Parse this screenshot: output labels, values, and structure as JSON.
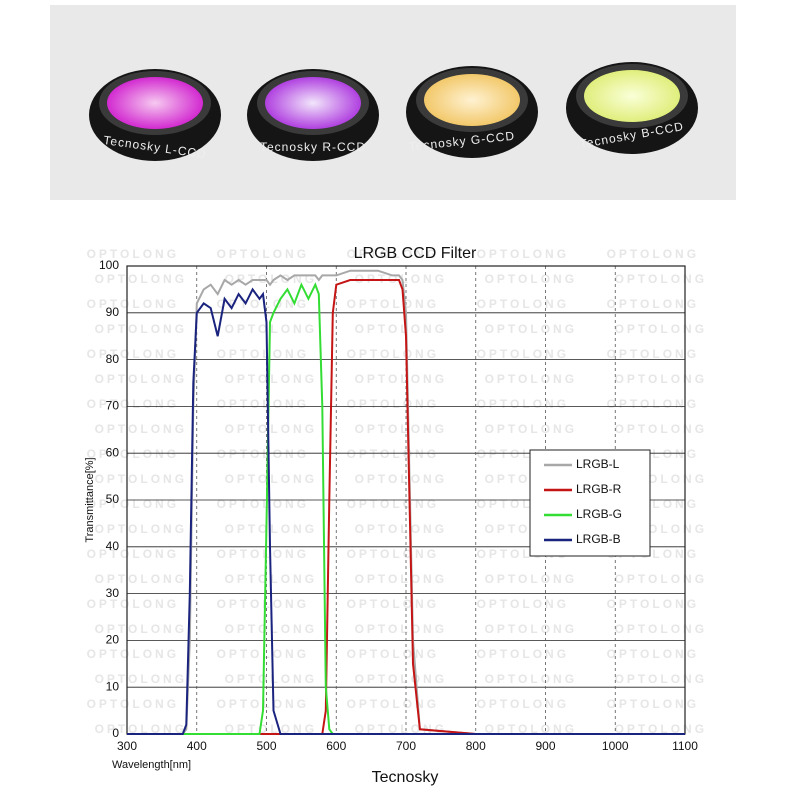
{
  "photo": {
    "filters": [
      {
        "label": "Tecnosky L-CCD"
      },
      {
        "label": "Tecnosky R-CCD"
      },
      {
        "label": "Tecnosky G-CCD"
      },
      {
        "label": "Tecnosky B-CCD"
      }
    ]
  },
  "watermark": "OPTOLONG",
  "caption": "Tecnosky",
  "chart_data": {
    "type": "line",
    "title": "LRGB CCD Filter",
    "x_label": "Wavelength[nm]",
    "y_label": "Transmittance[%]",
    "x": [
      300,
      380,
      385,
      390,
      395,
      400,
      410,
      420,
      430,
      440,
      450,
      460,
      470,
      480,
      490,
      495,
      500,
      505,
      510,
      520,
      530,
      540,
      550,
      560,
      570,
      575,
      580,
      585,
      590,
      595,
      600,
      620,
      640,
      660,
      680,
      690,
      695,
      700,
      705,
      710,
      720,
      800,
      900,
      1000,
      1100
    ],
    "series": [
      {
        "name": "LRGB-L",
        "color": "#a8a8a8",
        "values": [
          0,
          0,
          1,
          20,
          70,
          92,
          95,
          96,
          94,
          97,
          96,
          97,
          96,
          97,
          97,
          97,
          97,
          96,
          97,
          98,
          97,
          98,
          98,
          98,
          98,
          97,
          98,
          98,
          98,
          98,
          98,
          99,
          99,
          99,
          98,
          98,
          97,
          90,
          55,
          20,
          1,
          0,
          0,
          0,
          0
        ]
      },
      {
        "name": "LRGB-R",
        "color": "#c41414",
        "values": [
          0,
          0,
          0,
          0,
          0,
          0,
          0,
          0,
          0,
          0,
          0,
          0,
          0,
          0,
          0,
          0,
          0,
          0,
          0,
          0,
          0,
          0,
          0,
          0,
          0,
          0,
          0,
          5,
          50,
          90,
          96,
          97,
          97,
          97,
          97,
          97,
          95,
          85,
          50,
          15,
          1,
          0,
          0,
          0,
          0
        ]
      },
      {
        "name": "LRGB-G",
        "color": "#33dd33",
        "values": [
          0,
          0,
          0,
          0,
          0,
          0,
          0,
          0,
          0,
          0,
          0,
          0,
          0,
          0,
          0,
          5,
          45,
          88,
          90,
          93,
          95,
          92,
          96,
          93,
          96,
          94,
          70,
          10,
          1,
          0,
          0,
          0,
          0,
          0,
          0,
          0,
          0,
          0,
          0,
          0,
          0,
          0,
          0,
          0,
          0
        ]
      },
      {
        "name": "LRGB-B",
        "color": "#1a237e",
        "values": [
          0,
          0,
          2,
          30,
          75,
          90,
          92,
          91,
          85,
          93,
          91,
          94,
          92,
          95,
          93,
          94,
          88,
          40,
          5,
          0,
          0,
          0,
          0,
          0,
          0,
          0,
          0,
          0,
          0,
          0,
          0,
          0,
          0,
          0,
          0,
          0,
          0,
          0,
          0,
          0,
          0,
          0,
          0,
          0,
          0
        ]
      }
    ],
    "xlim": [
      300,
      1100
    ],
    "xticks": [
      300,
      400,
      500,
      600,
      700,
      800,
      900,
      1000,
      1100
    ],
    "ylim": [
      0,
      100
    ],
    "yticks": [
      0,
      10,
      20,
      30,
      40,
      50,
      60,
      70,
      80,
      90,
      100
    ],
    "grid": true,
    "legend": "right"
  }
}
